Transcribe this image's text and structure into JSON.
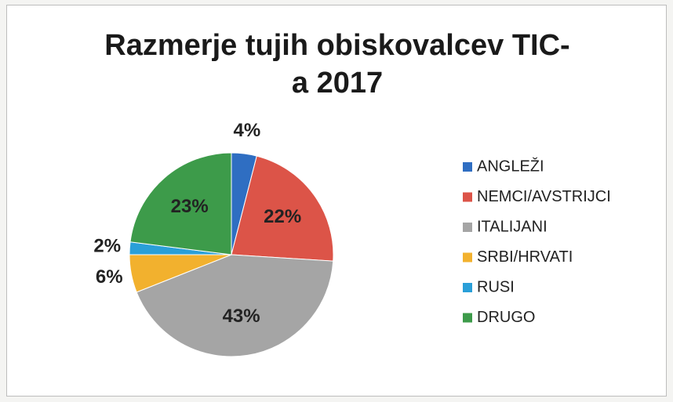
{
  "chart_data": {
    "type": "pie",
    "title": "Razmerje tujih obiskovalcev TIC-a 2017",
    "categories": [
      "ANGLEŽI",
      "NEMCI/AVSTRIJCI",
      "ITALIJANI",
      "SRBI/HRVATI",
      "RUSI",
      "DRUGO"
    ],
    "values": [
      4,
      22,
      43,
      6,
      2,
      23
    ],
    "value_labels": [
      "4%",
      "22%",
      "43%",
      "6%",
      "2%",
      "23%"
    ],
    "colors": [
      "#2f6ec2",
      "#dc5448",
      "#a5a5a5",
      "#f2b12e",
      "#2a9fd8",
      "#3d9b4a"
    ],
    "legend": "right"
  }
}
